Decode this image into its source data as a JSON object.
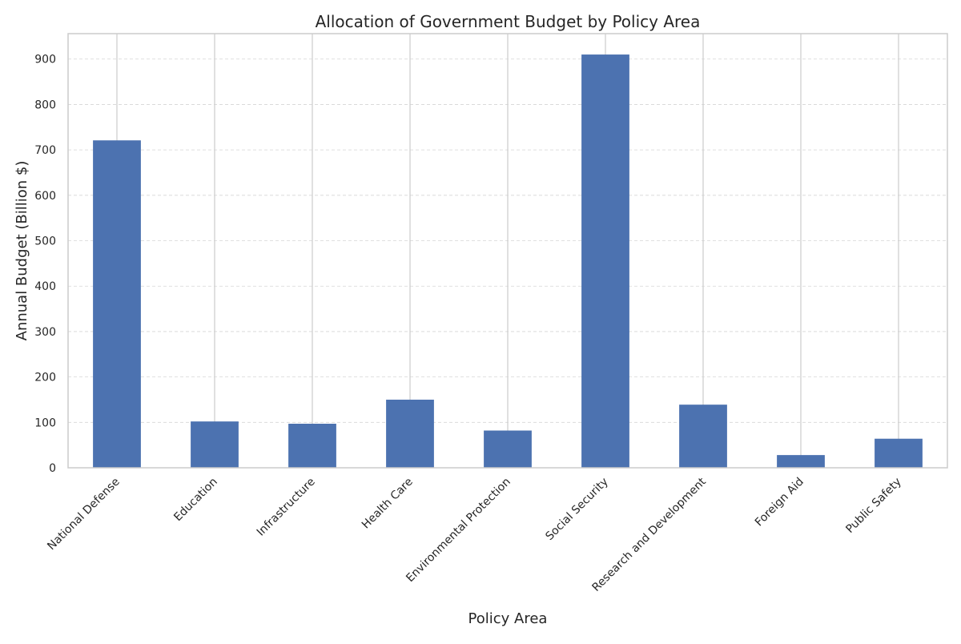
{
  "chart_data": {
    "type": "bar",
    "title": "Allocation of Government Budget by Policy Area",
    "xlabel": "Policy Area",
    "ylabel": "Annual Budget (Billion $)",
    "categories": [
      "National Defense",
      "Education",
      "Infrastructure",
      "Health Care",
      "Environmental Protection",
      "Social Security",
      "Research and Development",
      "Foreign Aid",
      "Public Safety"
    ],
    "values": [
      721,
      102,
      97,
      150,
      82,
      910,
      139,
      28,
      64
    ],
    "ylim": [
      0,
      956
    ],
    "yticks": [
      0,
      100,
      200,
      300,
      400,
      500,
      600,
      700,
      800,
      900
    ],
    "grid": true,
    "legend": "none",
    "colors": {
      "bar": "#4c72b0",
      "grid": "#d5d5d5",
      "frame": "#cccccc",
      "text": "#262626",
      "background": "#ffffff"
    }
  }
}
